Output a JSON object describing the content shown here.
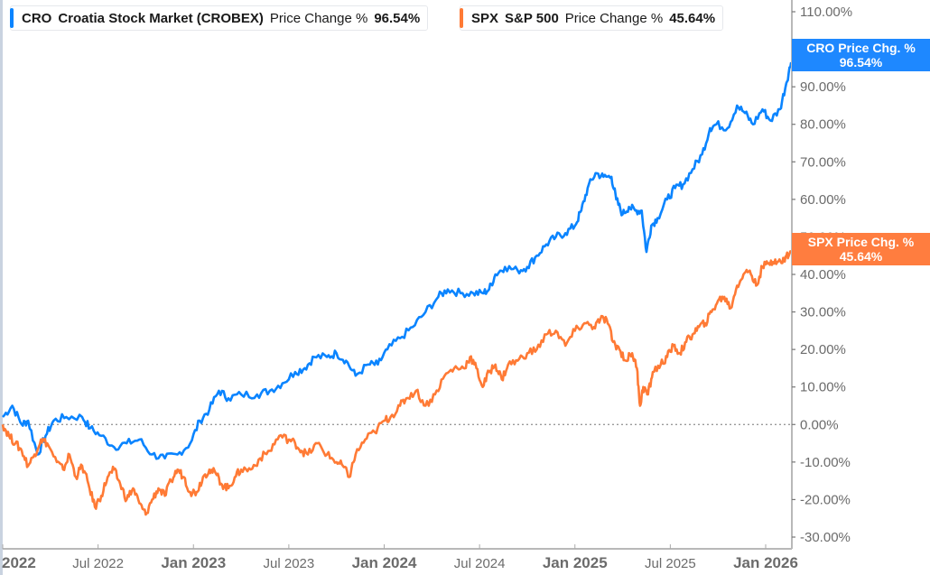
{
  "legend": {
    "cro": {
      "ticker": "CRO",
      "name": "Croatia Stock Market (CROBEX)",
      "metric": "Price Change %",
      "value": "96.54%",
      "color": "#0a84ff"
    },
    "spx": {
      "ticker": "SPX",
      "name": "S&P 500",
      "metric": "Price Change %",
      "value": "45.64%",
      "color": "#ff7a35"
    }
  },
  "flags": {
    "cro": {
      "label": "CRO Price Chg. %",
      "value": "96.54%",
      "color": "#1e88ff"
    },
    "spx": {
      "label": "SPX Price Chg. %",
      "value": "45.64%",
      "color": "#ff7d3f"
    }
  },
  "chart_data": {
    "type": "line",
    "title": "",
    "xlabel": "",
    "ylabel": "Price Change %",
    "ylim": [
      -30,
      110
    ],
    "yticks": [
      "110.00%",
      "100.00%",
      "90.00%",
      "80.00%",
      "70.00%",
      "60.00%",
      "50.00%",
      "40.00%",
      "30.00%",
      "20.00%",
      "10.00%",
      "0.00%",
      "-10.00%",
      "-20.00%",
      "-30.00%"
    ],
    "ytick_values": [
      110,
      100,
      90,
      80,
      70,
      60,
      50,
      40,
      30,
      20,
      10,
      0,
      -10,
      -20,
      -30
    ],
    "xticks": [
      {
        "label": "2022",
        "major": true,
        "t": 0
      },
      {
        "label": "Jul 2022",
        "major": false,
        "t": 6
      },
      {
        "label": "Jan 2023",
        "major": true,
        "t": 12
      },
      {
        "label": "Jul 2023",
        "major": false,
        "t": 18
      },
      {
        "label": "Jan 2024",
        "major": true,
        "t": 24
      },
      {
        "label": "Jul 2024",
        "major": false,
        "t": 30
      },
      {
        "label": "Jan 2025",
        "major": true,
        "t": 36
      },
      {
        "label": "Jul 2025",
        "major": false,
        "t": 42
      },
      {
        "label": "Jan 2026",
        "major": true,
        "t": 48
      }
    ],
    "x_range_months": [
      0,
      49.6
    ],
    "zero_line": true,
    "grid": false,
    "legend_position": "top-left",
    "series": [
      {
        "name": "CRO Croatia Stock Market (CROBEX) Price Change %",
        "color": "#0a84ff",
        "last_value": 96.54,
        "points": [
          [
            0,
            2
          ],
          [
            0.6,
            5
          ],
          [
            1.2,
            0
          ],
          [
            1.6,
            1
          ],
          [
            2.2,
            -8
          ],
          [
            2.7,
            -3
          ],
          [
            3.2,
            1
          ],
          [
            4,
            2
          ],
          [
            5,
            2
          ],
          [
            5.5,
            -1
          ],
          [
            6.2,
            -3
          ],
          [
            7,
            -6
          ],
          [
            7.8,
            -5
          ],
          [
            8.6,
            -4
          ],
          [
            9.4,
            -8
          ],
          [
            10.2,
            -9
          ],
          [
            11,
            -8
          ],
          [
            11.8,
            -5
          ],
          [
            12.4,
            1
          ],
          [
            13,
            4
          ],
          [
            13.6,
            9
          ],
          [
            14.2,
            7
          ],
          [
            15,
            8
          ],
          [
            16,
            8
          ],
          [
            16.8,
            9
          ],
          [
            17.6,
            11
          ],
          [
            18.4,
            14
          ],
          [
            19,
            15
          ],
          [
            19.6,
            18
          ],
          [
            20.4,
            18
          ],
          [
            21,
            19
          ],
          [
            21.6,
            17
          ],
          [
            22.2,
            13
          ],
          [
            23,
            16
          ],
          [
            23.6,
            16
          ],
          [
            24.2,
            20
          ],
          [
            25,
            23
          ],
          [
            25.8,
            26
          ],
          [
            26.6,
            30
          ],
          [
            27.4,
            34
          ],
          [
            28,
            36
          ],
          [
            28.8,
            35
          ],
          [
            29.6,
            35
          ],
          [
            30.2,
            35
          ],
          [
            30.6,
            36
          ],
          [
            31,
            40
          ],
          [
            31.6,
            42
          ],
          [
            32.4,
            41
          ],
          [
            33,
            42
          ],
          [
            33.6,
            45
          ],
          [
            34.2,
            48
          ],
          [
            34.8,
            50
          ],
          [
            35.4,
            51
          ],
          [
            36,
            53
          ],
          [
            36.4,
            57
          ],
          [
            36.8,
            63
          ],
          [
            37.3,
            67
          ],
          [
            37.8,
            66
          ],
          [
            38.3,
            66
          ],
          [
            38.6,
            60
          ],
          [
            39,
            56
          ],
          [
            39.4,
            58
          ],
          [
            39.8,
            57
          ],
          [
            40.2,
            57
          ],
          [
            40.5,
            46
          ],
          [
            40.8,
            53
          ],
          [
            41.2,
            55
          ],
          [
            41.8,
            60
          ],
          [
            42.3,
            63
          ],
          [
            42.8,
            64
          ],
          [
            43.4,
            68
          ],
          [
            44,
            72
          ],
          [
            44.5,
            79
          ],
          [
            44.9,
            80
          ],
          [
            45.6,
            79
          ],
          [
            46.2,
            85
          ],
          [
            46.7,
            83
          ],
          [
            47.2,
            80
          ],
          [
            47.8,
            84
          ],
          [
            48.3,
            81
          ],
          [
            48.9,
            84
          ],
          [
            49.3,
            91
          ],
          [
            49.6,
            96.54
          ]
        ]
      },
      {
        "name": "SPX S&P 500 Price Change %",
        "color": "#ff7a35",
        "last_value": 45.64,
        "points": [
          [
            0,
            0
          ],
          [
            0.4,
            -3
          ],
          [
            0.8,
            -5
          ],
          [
            1.2,
            -7
          ],
          [
            1.6,
            -11
          ],
          [
            2,
            -8
          ],
          [
            2.4,
            -4
          ],
          [
            2.8,
            -5
          ],
          [
            3.4,
            -10
          ],
          [
            3.8,
            -12
          ],
          [
            4.2,
            -8
          ],
          [
            4.6,
            -14
          ],
          [
            5,
            -11
          ],
          [
            5.4,
            -16
          ],
          [
            5.8,
            -22
          ],
          [
            6.2,
            -19
          ],
          [
            6.6,
            -14
          ],
          [
            7,
            -12
          ],
          [
            7.4,
            -16
          ],
          [
            7.8,
            -20
          ],
          [
            8.2,
            -17
          ],
          [
            8.6,
            -21
          ],
          [
            9,
            -24
          ],
          [
            9.4,
            -20
          ],
          [
            9.8,
            -17
          ],
          [
            10.2,
            -19
          ],
          [
            10.6,
            -15
          ],
          [
            11,
            -12
          ],
          [
            11.4,
            -14
          ],
          [
            11.8,
            -18
          ],
          [
            12.2,
            -18
          ],
          [
            12.6,
            -14
          ],
          [
            13,
            -12
          ],
          [
            13.4,
            -13
          ],
          [
            13.8,
            -16
          ],
          [
            14.2,
            -17
          ],
          [
            14.6,
            -14
          ],
          [
            15,
            -12
          ],
          [
            15.6,
            -12
          ],
          [
            16.2,
            -9
          ],
          [
            16.8,
            -7
          ],
          [
            17.4,
            -3
          ],
          [
            18,
            -4
          ],
          [
            18.4,
            -5
          ],
          [
            18.8,
            -7
          ],
          [
            19.2,
            -8
          ],
          [
            19.8,
            -5
          ],
          [
            20.4,
            -8
          ],
          [
            21,
            -10
          ],
          [
            21.4,
            -11
          ],
          [
            21.8,
            -14
          ],
          [
            22.2,
            -8
          ],
          [
            22.8,
            -4
          ],
          [
            23.4,
            -2
          ],
          [
            24,
            1
          ],
          [
            24.4,
            2
          ],
          [
            25,
            5
          ],
          [
            25.4,
            7
          ],
          [
            26,
            9
          ],
          [
            26.6,
            5
          ],
          [
            27.2,
            8
          ],
          [
            27.8,
            13
          ],
          [
            28.4,
            15
          ],
          [
            29,
            15
          ],
          [
            29.4,
            18
          ],
          [
            29.8,
            15
          ],
          [
            30.2,
            10
          ],
          [
            30.6,
            14
          ],
          [
            31,
            16
          ],
          [
            31.4,
            12
          ],
          [
            31.8,
            16
          ],
          [
            32.4,
            17
          ],
          [
            33,
            19
          ],
          [
            33.6,
            20
          ],
          [
            34.2,
            24
          ],
          [
            34.8,
            25
          ],
          [
            35.4,
            21
          ],
          [
            36,
            25
          ],
          [
            36.6,
            27
          ],
          [
            37.2,
            26
          ],
          [
            37.6,
            28
          ],
          [
            38,
            28
          ],
          [
            38.4,
            22
          ],
          [
            38.8,
            20
          ],
          [
            39.2,
            17
          ],
          [
            39.6,
            19
          ],
          [
            39.9,
            15
          ],
          [
            40.1,
            5
          ],
          [
            40.3,
            10
          ],
          [
            40.6,
            8
          ],
          [
            40.9,
            14
          ],
          [
            41.4,
            16
          ],
          [
            41.8,
            18
          ],
          [
            42.2,
            21
          ],
          [
            42.6,
            19
          ],
          [
            43,
            22
          ],
          [
            43.4,
            24
          ],
          [
            43.8,
            26
          ],
          [
            44.2,
            27
          ],
          [
            44.6,
            30
          ],
          [
            45,
            33
          ],
          [
            45.4,
            34
          ],
          [
            45.8,
            31
          ],
          [
            46.2,
            37
          ],
          [
            46.6,
            40
          ],
          [
            47,
            41
          ],
          [
            47.4,
            37
          ],
          [
            47.8,
            42
          ],
          [
            48.2,
            43
          ],
          [
            48.6,
            44
          ],
          [
            49,
            43
          ],
          [
            49.3,
            45
          ],
          [
            49.6,
            45.64
          ]
        ]
      }
    ]
  }
}
